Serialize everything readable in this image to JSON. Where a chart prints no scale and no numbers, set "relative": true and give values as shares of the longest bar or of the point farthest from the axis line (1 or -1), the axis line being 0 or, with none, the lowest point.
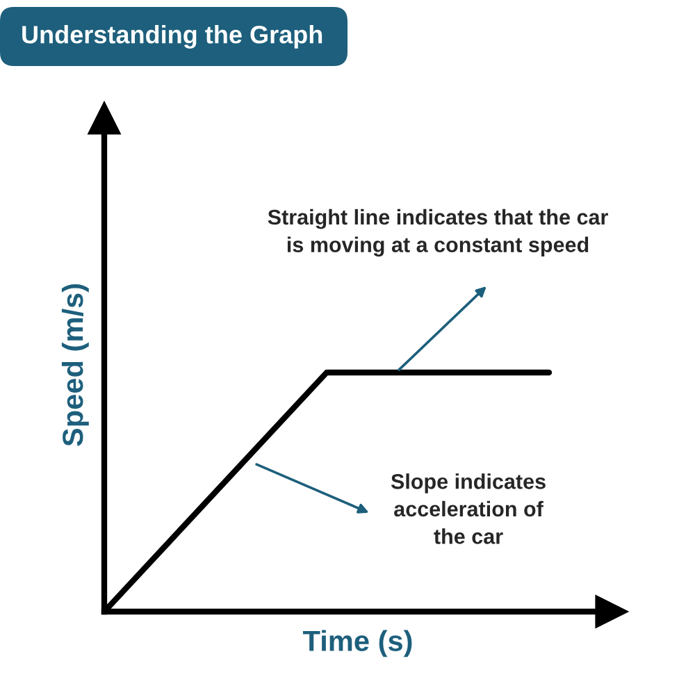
{
  "chart_data": {
    "type": "line",
    "title": "Understanding the Graph",
    "xlabel": "Time (s)",
    "ylabel": "Speed (m/s)",
    "categories": [
      null,
      null,
      null
    ],
    "relative": true,
    "series": [
      {
        "color": "#000000",
        "values": [
          0,
          1,
          1
        ]
      }
    ],
    "marker": "none",
    "line_style": "solid",
    "grid": false,
    "legend": false,
    "annotations": [
      "Straight line indicates that the car\nis moving at a constant speed",
      "Slope indicates\nacceleration of\nthe car"
    ]
  }
}
